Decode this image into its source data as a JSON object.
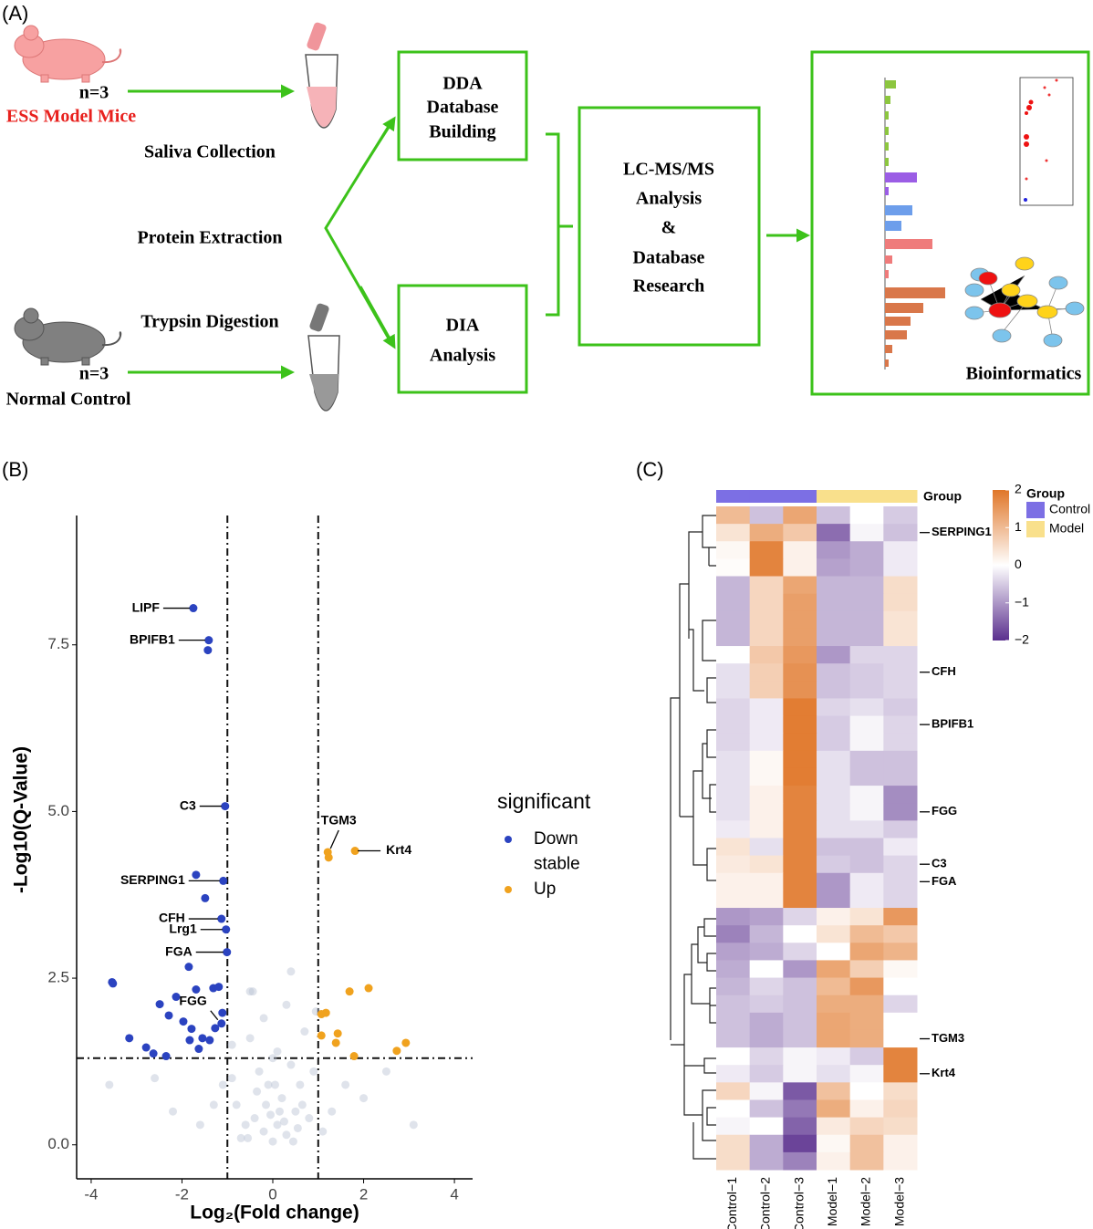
{
  "panel_a": {
    "label": "(A)",
    "model": {
      "n": "n=3",
      "name": "ESS Model Mice"
    },
    "control": {
      "n": "n=3",
      "name": "Normal Control"
    },
    "steps": [
      "Saliva Collection",
      "Protein Extraction",
      "Trypsin Digestion"
    ],
    "dda": [
      "DDA",
      "Database",
      "Building"
    ],
    "dia": [
      "DIA",
      "Analysis"
    ],
    "lcms": [
      "LC-MS/MS",
      "Analysis",
      "&",
      "Database",
      "Research"
    ],
    "bioinformatics": "Bioinformatics"
  },
  "chart_data": [
    {
      "type": "scatter",
      "panel": "(B)",
      "xlabel": "Log₂(Fold change)",
      "ylabel": "-Log10(Q-Value)",
      "legend_title": "significant",
      "xlim": [
        -4.32,
        4.4
      ],
      "ylim": [
        -0.51,
        9.44
      ],
      "xticks": [
        -4,
        -2,
        0,
        2,
        4
      ],
      "yticks": [
        {
          "value": 0,
          "label": "0.0"
        },
        {
          "value": 2.5,
          "label": "2.5"
        },
        {
          "value": 5,
          "label": "5.0"
        },
        {
          "value": 7.5,
          "label": "7.5"
        }
      ],
      "thresholds": {
        "x": [
          -1,
          1
        ],
        "y": 1.3
      },
      "series": [
        {
          "name": "Down",
          "color": "#2b43c0",
          "x": [
            -1.75,
            -1.41,
            -1.43,
            -1.05,
            -1.69,
            -1.09,
            -1.49,
            -1.13,
            -1.03,
            -1.01,
            -1.85,
            -3.54,
            -3.52,
            -2.49,
            -2.13,
            -1.69,
            -1.31,
            -1.19,
            -2.29,
            -1.97,
            -1.79,
            -1.13,
            -1.39,
            -3.16,
            -2.79,
            -2.63,
            -2.35,
            -1.83,
            -1.55,
            -1.27,
            -1.11,
            -1.63
          ],
          "values": [
            8.05,
            7.57,
            7.42,
            5.08,
            4.05,
            3.96,
            3.7,
            3.39,
            3.23,
            2.89,
            2.67,
            2.44,
            2.42,
            2.11,
            2.22,
            2.33,
            2.35,
            2.37,
            1.94,
            1.85,
            1.74,
            1.82,
            1.57,
            1.6,
            1.46,
            1.37,
            1.33,
            1.57,
            1.6,
            1.75,
            1.98,
            1.44
          ],
          "point_labels": [
            "LIPF",
            "BPIFB1",
            null,
            "C3",
            null,
            "SERPING1",
            null,
            "CFH",
            "Lrg1",
            "FGA",
            null,
            null,
            null,
            null,
            null,
            null,
            null,
            null,
            null,
            null,
            null,
            "FGG",
            null,
            null,
            null,
            null,
            null,
            null,
            null,
            null,
            null,
            null
          ]
        },
        {
          "name": "stable",
          "color": "#b8c1d3",
          "x": [
            -0.2,
            0.1,
            0.3,
            -0.4,
            0.5,
            -0.6,
            0.2,
            -0.1,
            0.6,
            -0.8,
            0.8,
            0.0,
            -0.3,
            0.4,
            -0.9,
            0.9,
            0.1,
            -0.5,
            0.7,
            -0.2,
            0.3,
            -0.5,
            0.4,
            -0.44,
            0.95,
            -0.9,
            0.15,
            -0.15,
            0.55,
            -0.7,
            1.3,
            -1.3,
            1.6,
            -1.6,
            2.0,
            -2.2,
            3.1,
            -3.6,
            0.25,
            -0.35,
            0.0,
            0.65,
            -0.55,
            1.1,
            -1.1,
            2.5,
            -2.6,
            0.05,
            -0.05,
            0.45
          ],
          "values": [
            0.2,
            0.3,
            0.15,
            0.4,
            0.5,
            0.3,
            0.7,
            0.9,
            0.9,
            0.6,
            0.4,
            0.05,
            1.1,
            1.2,
            1.0,
            1.1,
            1.4,
            1.6,
            1.7,
            1.9,
            2.1,
            2.3,
            2.6,
            2.3,
            2.0,
            1.5,
            0.5,
            0.6,
            0.25,
            0.1,
            0.5,
            0.6,
            0.9,
            0.3,
            0.7,
            0.5,
            0.3,
            0.9,
            0.35,
            0.8,
            1.3,
            0.6,
            0.1,
            0.2,
            0.9,
            1.1,
            1.0,
            0.9,
            0.45,
            0.05
          ],
          "point_labels": [
            null,
            null,
            null,
            null,
            null,
            null,
            null,
            null,
            null,
            null,
            null,
            null,
            null,
            null,
            null,
            null,
            null,
            null,
            null,
            null,
            null,
            null,
            null,
            null,
            null,
            null,
            null,
            null,
            null,
            null,
            null,
            null,
            null,
            null,
            null,
            null,
            null,
            null,
            null,
            null,
            null,
            null,
            null,
            null,
            null,
            null,
            null,
            null,
            null,
            null
          ]
        },
        {
          "name": "Up",
          "color": "#f0a21e",
          "x": [
            1.21,
            1.23,
            1.81,
            1.69,
            2.11,
            1.07,
            1.17,
            1.07,
            1.43,
            1.39,
            2.93,
            2.73,
            1.79
          ],
          "values": [
            4.39,
            4.31,
            4.41,
            2.3,
            2.35,
            1.96,
            1.98,
            1.64,
            1.67,
            1.53,
            1.53,
            1.41,
            1.33
          ],
          "point_labels": [
            "TGM3",
            null,
            "Krt4",
            null,
            null,
            null,
            null,
            null,
            null,
            null,
            null,
            null,
            null
          ]
        }
      ]
    },
    {
      "type": "heatmap",
      "panel": "(C)",
      "group_bar_label": "Group",
      "legend_title": "Group",
      "groups": [
        {
          "name": "Control",
          "color": "#7c6fe4"
        },
        {
          "name": "Model",
          "color": "#f9e08c"
        }
      ],
      "columns": [
        "Control−1",
        "Control−2",
        "Control−3",
        "Model−1",
        "Model−2",
        "Model−3"
      ],
      "column_groups": [
        "Control",
        "Control",
        "Control",
        "Model",
        "Model",
        "Model"
      ],
      "colorscale": [
        "#5a2f8e",
        "#ffffff",
        "#e07628"
      ],
      "clim": [
        -2,
        2
      ],
      "cticks": [
        2,
        1,
        0,
        {
          "value": -1,
          "label": "−1"
        },
        {
          "value": -2,
          "label": "−2"
        }
      ],
      "rows": [
        null,
        "SERPING1",
        null,
        null,
        null,
        null,
        null,
        null,
        null,
        "CFH",
        null,
        null,
        "BPIFB1",
        null,
        null,
        null,
        null,
        "FGG",
        null,
        null,
        "C3",
        "FGA",
        null,
        null,
        null,
        null,
        null,
        null,
        null,
        null,
        "TGM3",
        null,
        "Krt4",
        null,
        null,
        null,
        null,
        null
      ],
      "values": [
        [
          1.0,
          -0.6,
          1.3,
          -0.6,
          0,
          -0.5
        ],
        [
          0.4,
          1.2,
          0.8,
          -1.4,
          -0.1,
          -0.6
        ],
        [
          0.1,
          1.8,
          0.2,
          -1.0,
          -0.8,
          -0.2
        ],
        [
          0.05,
          1.8,
          0.2,
          -0.9,
          -0.8,
          -0.2
        ],
        [
          -0.7,
          0.6,
          1.3,
          -0.7,
          -0.7,
          0.5
        ],
        [
          -0.7,
          0.6,
          1.4,
          -0.7,
          -0.7,
          0.5
        ],
        [
          -0.7,
          0.6,
          1.4,
          -0.7,
          -0.7,
          0.4
        ],
        [
          -0.7,
          0.6,
          1.4,
          -0.7,
          -0.7,
          0.4
        ],
        [
          0,
          0.8,
          1.5,
          -1.0,
          -0.4,
          -0.4
        ],
        [
          -0.3,
          0.7,
          1.6,
          -0.6,
          -0.5,
          -0.4
        ],
        [
          -0.3,
          0.7,
          1.6,
          -0.6,
          -0.5,
          -0.4
        ],
        [
          -0.4,
          -0.2,
          1.9,
          -0.4,
          -0.3,
          -0.5
        ],
        [
          -0.4,
          -0.2,
          1.9,
          -0.5,
          -0.1,
          -0.4
        ],
        [
          -0.4,
          -0.2,
          1.9,
          -0.5,
          -0.1,
          -0.4
        ],
        [
          -0.3,
          0.1,
          1.9,
          -0.3,
          -0.6,
          -0.6
        ],
        [
          -0.3,
          0.1,
          1.9,
          -0.3,
          -0.6,
          -0.6
        ],
        [
          -0.3,
          0.2,
          1.8,
          -0.3,
          -0.1,
          -1.1
        ],
        [
          -0.3,
          0.2,
          1.8,
          -0.3,
          -0.1,
          -1.1
        ],
        [
          -0.2,
          0.2,
          1.8,
          -0.3,
          -0.3,
          -0.5
        ],
        [
          0.4,
          -0.3,
          1.8,
          -0.6,
          -0.6,
          -0.2
        ],
        [
          0.3,
          0.4,
          1.8,
          -0.5,
          -0.6,
          -0.4
        ],
        [
          0.2,
          0.2,
          1.8,
          -1.0,
          -0.2,
          -0.4
        ],
        [
          0.2,
          0.2,
          1.8,
          -1.0,
          -0.2,
          -0.4
        ],
        [
          -1.0,
          -0.9,
          -0.4,
          0.2,
          0.4,
          1.5
        ],
        [
          -1.2,
          -0.7,
          0,
          0.4,
          1.0,
          0.8
        ],
        [
          -0.9,
          -0.8,
          -0.4,
          0,
          1.3,
          1.1
        ],
        [
          -0.8,
          0,
          -1.0,
          1.3,
          0.7,
          0.1
        ],
        [
          -0.7,
          -0.4,
          -0.6,
          1.0,
          1.5,
          0
        ],
        [
          -0.6,
          -0.5,
          -0.6,
          1.2,
          1.2,
          -0.4
        ],
        [
          -0.6,
          -0.8,
          -0.6,
          1.3,
          1.2,
          0
        ],
        [
          -0.6,
          -0.8,
          -0.6,
          1.3,
          1.2,
          0
        ],
        [
          0,
          -0.4,
          -0.1,
          -0.2,
          -0.5,
          1.8
        ],
        [
          -0.2,
          -0.5,
          -0.1,
          -0.3,
          -0.1,
          1.8
        ],
        [
          0.6,
          -0.1,
          -1.6,
          0.9,
          0,
          0.5
        ],
        [
          0,
          -0.6,
          -1.3,
          1.2,
          0.2,
          0.6
        ],
        [
          -0.1,
          0,
          -1.5,
          0.3,
          0.6,
          0.5
        ],
        [
          0.5,
          -0.8,
          -1.8,
          0.1,
          0.9,
          0.2
        ],
        [
          0.5,
          -0.8,
          -1.2,
          0.2,
          0.9,
          0.2
        ]
      ]
    }
  ]
}
